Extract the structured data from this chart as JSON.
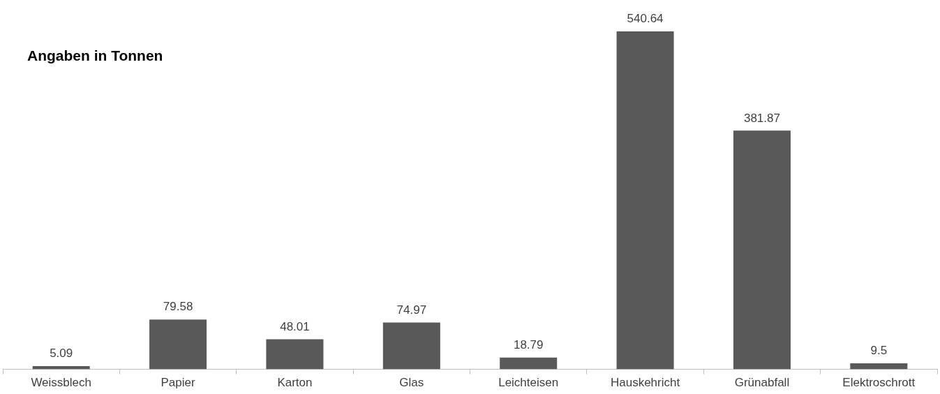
{
  "chart_data": {
    "type": "bar",
    "title": "Angaben in Tonnen",
    "categories": [
      "Weissblech",
      "Papier",
      "Karton",
      "Glas",
      "Leichteisen",
      "Hauskehricht",
      "Grünabfall",
      "Elektroschrott"
    ],
    "values": [
      5.09,
      79.58,
      48.01,
      74.97,
      18.79,
      540.64,
      381.87,
      9.5
    ],
    "color": "#595959",
    "data_labels": true,
    "grid": false,
    "legend": false
  }
}
